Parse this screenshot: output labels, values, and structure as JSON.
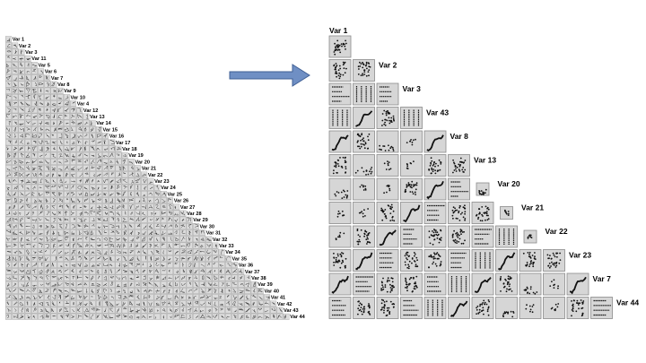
{
  "left_panel": {
    "variables": [
      "Var 1",
      "Var 2",
      "Var 3",
      "Var 11",
      "Var 5",
      "Var 6",
      "Var 7",
      "Var 8",
      "Var 9",
      "Var 10",
      "Var 4",
      "Var 12",
      "Var 13",
      "Var 14",
      "Var 15",
      "Var 16",
      "Var 17",
      "Var 18",
      "Var 19",
      "Var 20",
      "Var 21",
      "Var 22",
      "Var 23",
      "Var 24",
      "Var 25",
      "Var 26",
      "Var 27",
      "Var 28",
      "Var 29",
      "Var 30",
      "Var 31",
      "Var 32",
      "Var 33",
      "Var 34",
      "Var 35",
      "Var 36",
      "Var 37",
      "Var 38",
      "Var 39",
      "Var 40",
      "Var 41",
      "Var 42",
      "Var 43",
      "Var 44"
    ]
  },
  "arrow": {
    "color": "#6f8fc4",
    "border": "#3f5f94"
  },
  "right_panel": {
    "variables": [
      "Var 1",
      "Var 2",
      "Var 3",
      "Var 43",
      "Var 8",
      "Var 13",
      "Var 20",
      "Var 21",
      "Var 22",
      "Var 23",
      "Var 7",
      "Var 44"
    ]
  },
  "colors": {
    "cell_bg": "#d6d6d6",
    "cell_border": "#8a8a8a",
    "points": "#111111"
  }
}
